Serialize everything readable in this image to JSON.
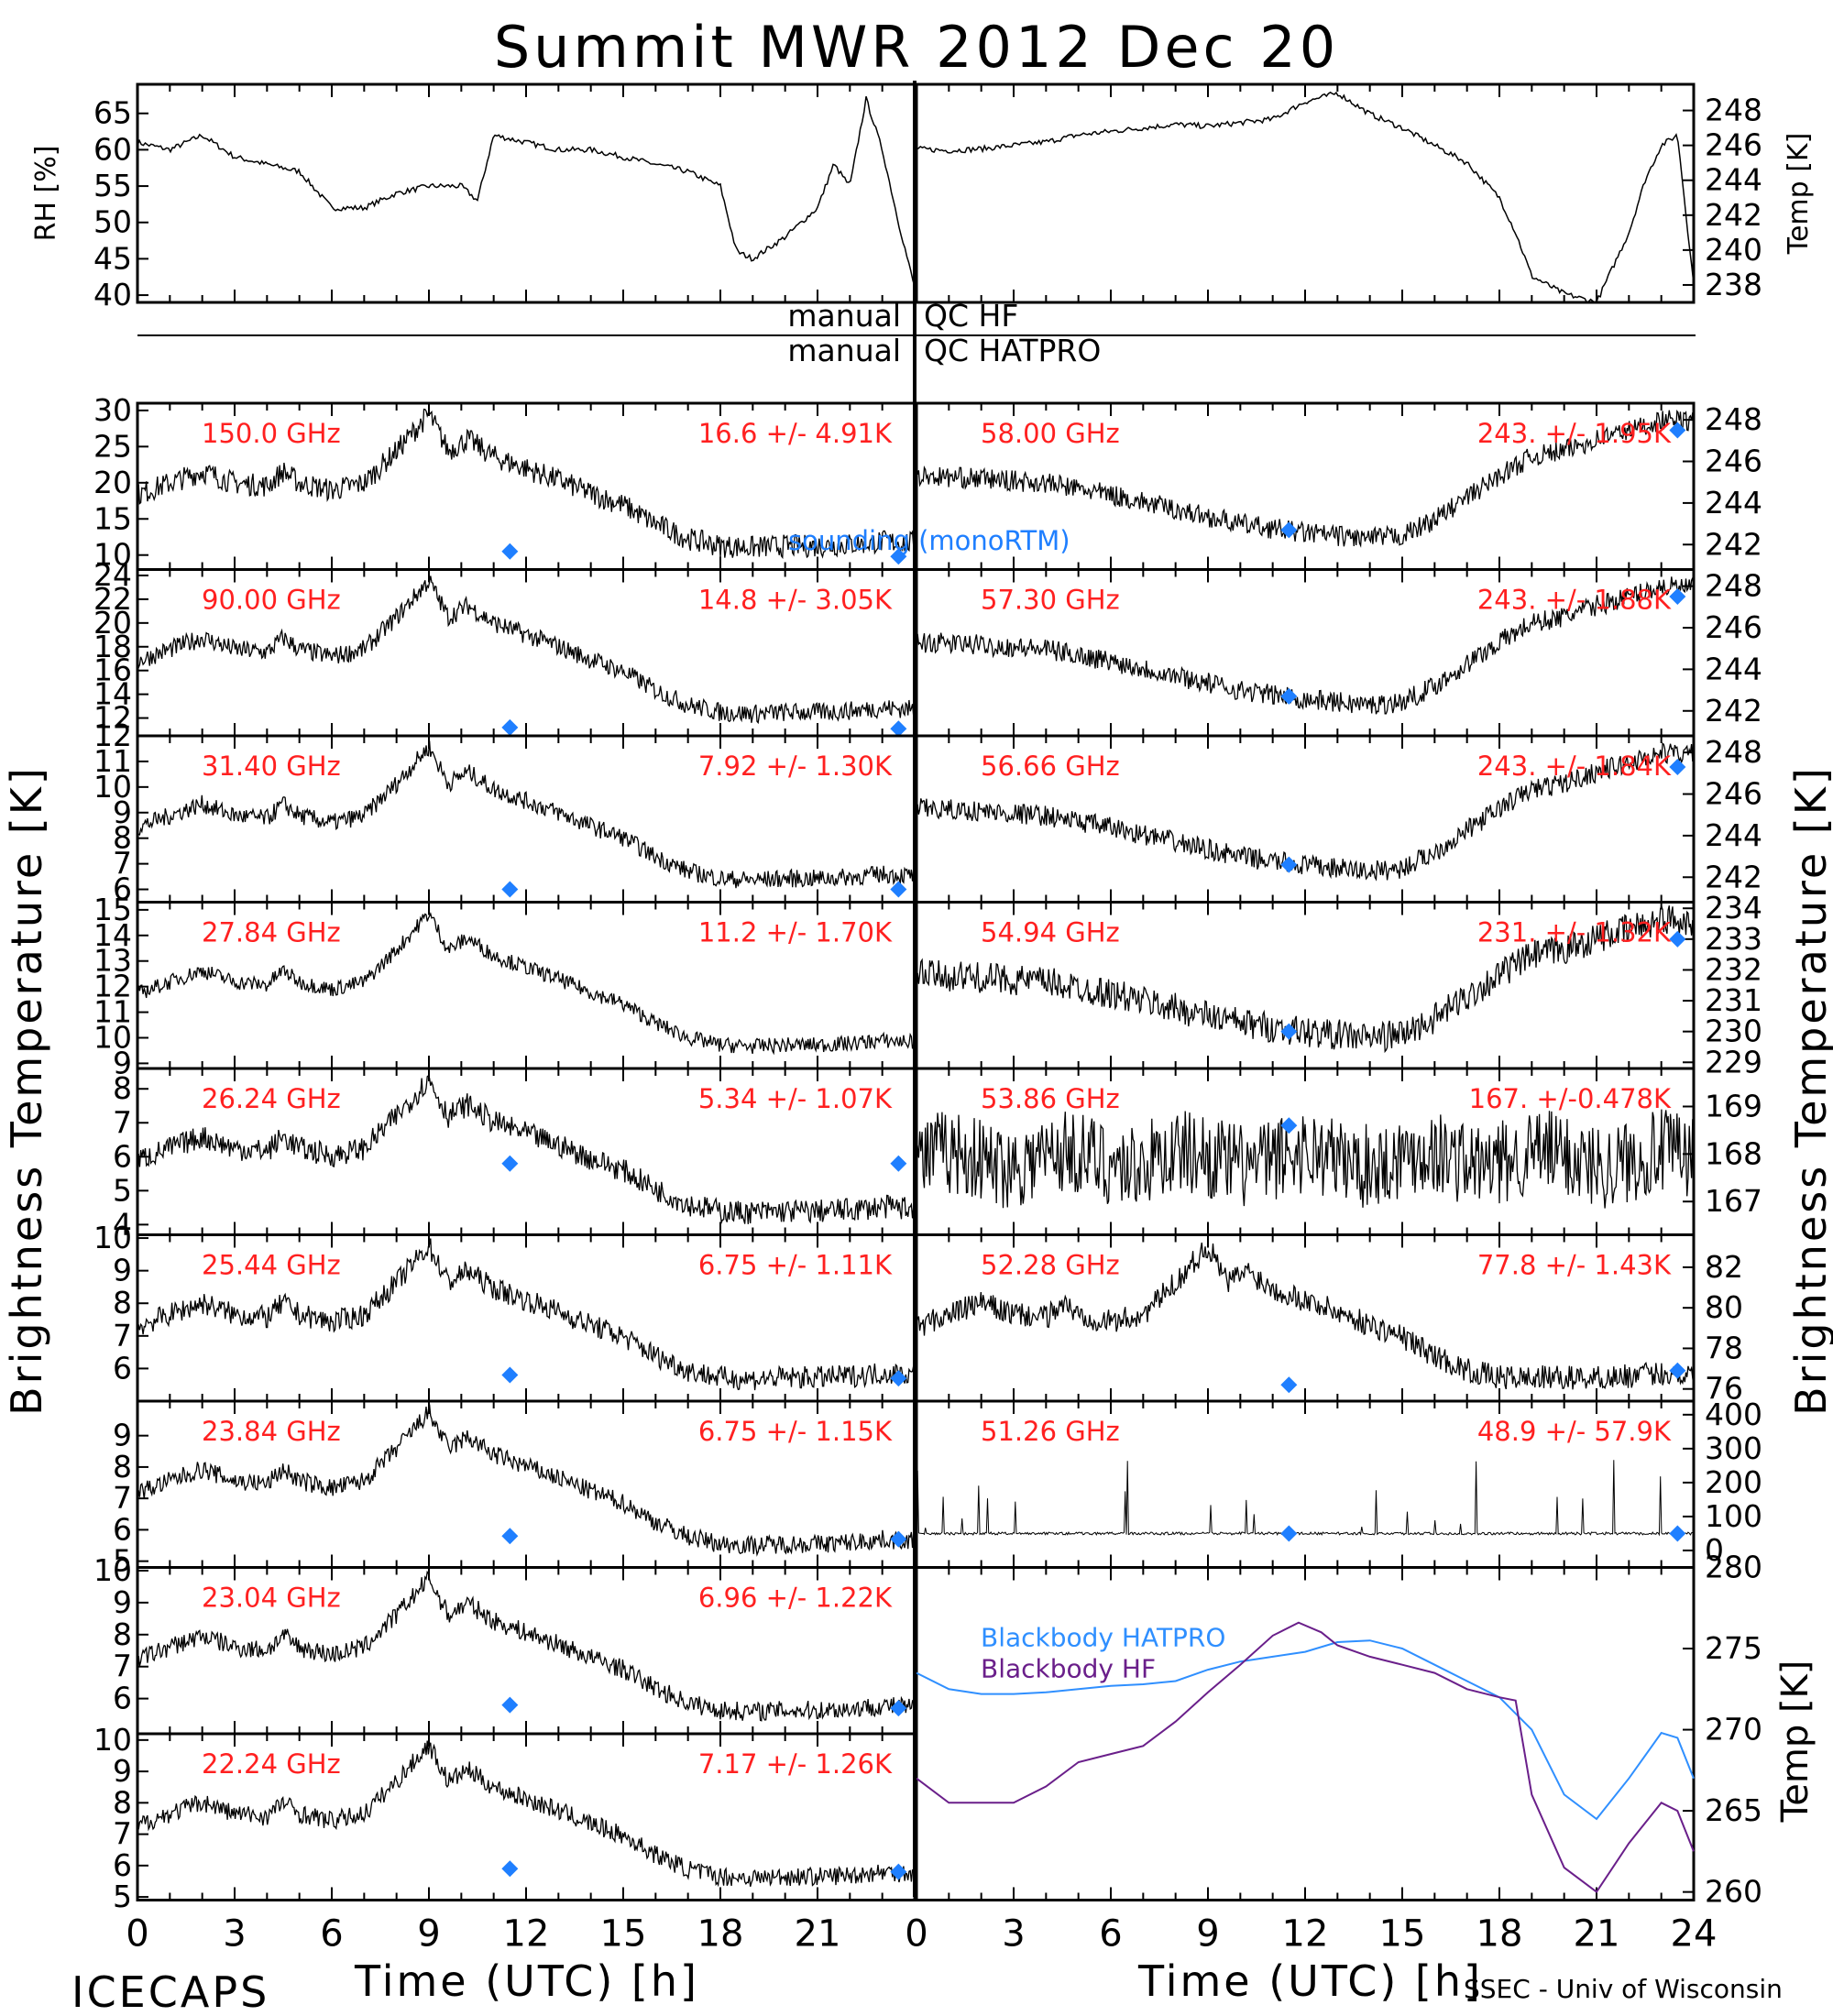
{
  "title": "Summit MWR 2012 Dec 20",
  "footer_left": "ICECAPS",
  "footer_right": "SSEC - Univ of Wisconsin",
  "qc_labels": [
    {
      "left": "manual",
      "right": "QC HF"
    },
    {
      "left": "manual",
      "right": "QC HATPRO"
    }
  ],
  "colors": {
    "data": "#000000",
    "label": "#ff2020",
    "model": "#1f7fff",
    "hatpro": "#2f8fff",
    "hf": "#6a1f8a"
  },
  "x_axis": {
    "label": "Time (UTC) [h]",
    "range": [
      0,
      24
    ],
    "ticks": [
      "0",
      "3",
      "6",
      "9",
      "12",
      "15",
      "18",
      "21"
    ],
    "ticks_right": [
      "0",
      "3",
      "6",
      "9",
      "12",
      "15",
      "18",
      "21",
      "24"
    ]
  },
  "left_ylabel": "Brightness Temperature [K]",
  "right_ylabel": "Brightness Temperature [K]",
  "model_label": "sounding (monoRTM)",
  "chart_data": [
    {
      "type": "line",
      "panel": "rh",
      "ylabel": "RH [%]",
      "ylim": [
        39,
        69
      ],
      "yticks": [
        "40",
        "45",
        "50",
        "55",
        "60",
        "65"
      ],
      "x": [
        0,
        1,
        2,
        3,
        4,
        5,
        6,
        7,
        8,
        9,
        10,
        10.5,
        11,
        12,
        13,
        14,
        15,
        16,
        17,
        18,
        18.5,
        19,
        20,
        21,
        21.5,
        22,
        22.5,
        23,
        23.5,
        24
      ],
      "values": [
        61,
        60,
        62,
        59,
        58,
        57,
        52,
        52,
        54,
        55,
        55,
        53,
        62,
        61,
        60,
        60,
        59,
        58,
        57,
        55,
        46,
        45,
        48,
        52,
        58,
        55,
        67,
        60,
        50,
        41
      ]
    },
    {
      "type": "line",
      "panel": "temp",
      "ylabel": "Temp [K]",
      "ylim": [
        237,
        249.5
      ],
      "yticks": [
        "238",
        "240",
        "242",
        "244",
        "246",
        "248"
      ],
      "x": [
        0,
        1,
        2,
        3,
        4,
        5,
        6,
        7,
        8,
        9,
        10,
        11,
        12,
        13,
        14,
        15,
        16,
        17,
        18,
        18.5,
        19,
        20,
        21,
        22,
        22.5,
        23,
        23.5,
        24
      ],
      "values": [
        245.8,
        245.7,
        245.8,
        246,
        246.2,
        246.6,
        246.8,
        247,
        247.2,
        247.1,
        247.3,
        247.5,
        248.5,
        249,
        247.8,
        247,
        246,
        245,
        243,
        241,
        238.5,
        237.5,
        237,
        241,
        244,
        246,
        246.6,
        238
      ]
    },
    {
      "type": "line",
      "side": "left",
      "label": "150.0 GHz",
      "stat": "16.6 +/-  4.91K",
      "ylim": [
        8,
        31
      ],
      "yticks": [
        "10",
        "15",
        "20",
        "25",
        "30"
      ],
      "amp": 1.6,
      "model": [
        [
          11.5,
          10.5
        ],
        [
          23.5,
          9.8
        ]
      ]
    },
    {
      "type": "line",
      "side": "left",
      "label": "90.00 GHz",
      "stat": "14.8 +/-  3.05K",
      "ylim": [
        10.5,
        24.5
      ],
      "yticks": [
        "12",
        "14",
        "16",
        "18",
        "20",
        "22",
        "24"
      ],
      "amp": 0.8,
      "model": [
        [
          11.5,
          11.2
        ],
        [
          23.5,
          11.1
        ]
      ]
    },
    {
      "type": "line",
      "side": "left",
      "label": "31.40 GHz",
      "stat": "7.92 +/- 1.30K",
      "ylim": [
        5.5,
        12
      ],
      "yticks": [
        "6",
        "7",
        "8",
        "9",
        "10",
        "11",
        "12"
      ],
      "amp": 0.35,
      "model": [
        [
          11.5,
          6.0
        ],
        [
          23.5,
          6.0
        ]
      ]
    },
    {
      "type": "line",
      "side": "left",
      "label": "27.84 GHz",
      "stat": "11.2 +/- 1.70K",
      "ylim": [
        8.8,
        15.3
      ],
      "yticks": [
        "9",
        "10",
        "11",
        "12",
        "13",
        "14",
        "15"
      ],
      "amp": 0.3,
      "model": []
    },
    {
      "type": "line",
      "side": "left",
      "label": "26.24 GHz",
      "stat": "5.34 +/- 1.07K",
      "ylim": [
        3.7,
        8.6
      ],
      "yticks": [
        "4",
        "5",
        "6",
        "7",
        "8"
      ],
      "amp": 0.35,
      "model": [
        [
          11.5,
          5.8
        ],
        [
          23.5,
          5.8
        ]
      ]
    },
    {
      "type": "line",
      "side": "left",
      "label": "25.44 GHz",
      "stat": "6.75 +/- 1.11K",
      "ylim": [
        5,
        10.1
      ],
      "yticks": [
        "6",
        "7",
        "8",
        "9",
        "10"
      ],
      "amp": 0.35,
      "model": [
        [
          11.5,
          5.8
        ],
        [
          23.5,
          5.7
        ]
      ]
    },
    {
      "type": "line",
      "side": "left",
      "label": "23.84 GHz",
      "stat": "6.75 +/- 1.15K",
      "ylim": [
        4.8,
        10.1
      ],
      "yticks": [
        "5",
        "6",
        "7",
        "8",
        "9"
      ],
      "amp": 0.3,
      "model": [
        [
          11.5,
          5.8
        ],
        [
          23.5,
          5.7
        ]
      ]
    },
    {
      "type": "line",
      "side": "left",
      "label": "23.04 GHz",
      "stat": "6.96 +/- 1.22K",
      "ylim": [
        4.9,
        10.1
      ],
      "yticks": [
        "6",
        "7",
        "8",
        "9",
        "10"
      ],
      "amp": 0.3,
      "model": [
        [
          11.5,
          5.8
        ],
        [
          23.5,
          5.7
        ]
      ]
    },
    {
      "type": "line",
      "side": "left",
      "label": "22.24 GHz",
      "stat": "7.17 +/- 1.26K",
      "ylim": [
        4.9,
        10.2
      ],
      "yticks": [
        "5",
        "6",
        "7",
        "8",
        "9",
        "10"
      ],
      "amp": 0.3,
      "model": [
        [
          11.5,
          5.9
        ],
        [
          23.5,
          5.8
        ]
      ]
    },
    {
      "type": "line",
      "side": "right",
      "label": "58.00 GHz",
      "stat": "243. +/- 1.95K",
      "ylim": [
        240.8,
        248.8
      ],
      "yticks": [
        "242",
        "244",
        "246",
        "248"
      ],
      "amp": 0.5,
      "model": [
        [
          11.5,
          242.7
        ],
        [
          23.5,
          247.5
        ]
      ]
    },
    {
      "type": "line",
      "side": "right",
      "label": "57.30 GHz",
      "stat": "243. +/- 1.88K",
      "ylim": [
        240.8,
        248.8
      ],
      "yticks": [
        "242",
        "244",
        "246",
        "248"
      ],
      "amp": 0.5,
      "model": [
        [
          11.5,
          242.7
        ],
        [
          23.5,
          247.5
        ]
      ]
    },
    {
      "type": "line",
      "side": "right",
      "label": "56.66 GHz",
      "stat": "243. +/- 1.84K",
      "ylim": [
        240.8,
        248.8
      ],
      "yticks": [
        "242",
        "244",
        "246",
        "248"
      ],
      "amp": 0.5,
      "model": [
        [
          11.5,
          242.6
        ],
        [
          23.5,
          247.3
        ]
      ]
    },
    {
      "type": "line",
      "side": "right",
      "label": "54.94 GHz",
      "stat": "231. +/- 1.32K",
      "ylim": [
        228.8,
        234.2
      ],
      "yticks": [
        "229",
        "230",
        "231",
        "232",
        "233",
        "234"
      ],
      "amp": 0.5,
      "model": [
        [
          11.5,
          230
        ],
        [
          23.5,
          233
        ]
      ]
    },
    {
      "type": "line",
      "side": "right",
      "label": "53.86 GHz",
      "stat": "167. +/-0.478K",
      "ylim": [
        166.3,
        169.8
      ],
      "yticks": [
        "167",
        "168",
        "169"
      ],
      "amp": 0.5,
      "model": [
        [
          11.5,
          168.6
        ]
      ]
    },
    {
      "type": "line",
      "side": "right",
      "label": "52.28 GHz",
      "stat": "77.8 +/- 1.43K",
      "ylim": [
        75.4,
        83.6
      ],
      "yticks": [
        "76",
        "78",
        "80",
        "82"
      ],
      "amp": 0.6,
      "model": [
        [
          11.5,
          76.2
        ],
        [
          23.5,
          76.9
        ]
      ]
    },
    {
      "type": "scatter",
      "side": "right",
      "label": "51.26 GHz",
      "stat": "48.9 +/- 57.9K",
      "ylim": [
        -50,
        440
      ],
      "yticks": [
        "0",
        "100",
        "200",
        "300",
        "400"
      ],
      "amp": 4,
      "model": [
        [
          11.5,
          50
        ],
        [
          23.5,
          50
        ]
      ]
    },
    {
      "type": "line",
      "panel": "blackbody",
      "ylabel": "Temp [K]",
      "ylim": [
        259.5,
        280
      ],
      "yticks": [
        "260",
        "265",
        "270",
        "275",
        "280"
      ],
      "series": [
        {
          "name": "Blackbody HATPRO",
          "x": [
            0,
            1,
            2,
            3,
            4,
            5,
            6,
            7,
            8,
            9,
            10,
            11,
            12,
            13,
            14,
            15,
            16,
            17,
            18,
            19,
            20,
            21,
            22,
            23,
            23.5,
            24
          ],
          "values": [
            273.5,
            272.5,
            272.2,
            272.2,
            272.3,
            272.5,
            272.7,
            272.8,
            273,
            273.7,
            274.2,
            274.5,
            274.8,
            275.4,
            275.5,
            275,
            274,
            273,
            272,
            270,
            266,
            264.5,
            267,
            269.8,
            269.5,
            267
          ]
        },
        {
          "name": "Blackbody HF",
          "x": [
            0,
            1,
            2,
            3,
            4,
            5,
            6,
            7,
            8,
            9,
            10,
            11,
            11.8,
            12.5,
            13,
            14,
            15,
            16,
            17,
            18,
            18.5,
            19,
            20,
            21,
            22,
            23,
            23.5,
            24
          ],
          "values": [
            267,
            265.5,
            265.5,
            265.5,
            266.5,
            268,
            268.5,
            269,
            270.5,
            272.3,
            274,
            275.8,
            276.6,
            276,
            275.2,
            274.5,
            274,
            273.5,
            272.5,
            272,
            271.8,
            266,
            261.5,
            260,
            263,
            265.5,
            265,
            262.5
          ]
        }
      ]
    }
  ]
}
